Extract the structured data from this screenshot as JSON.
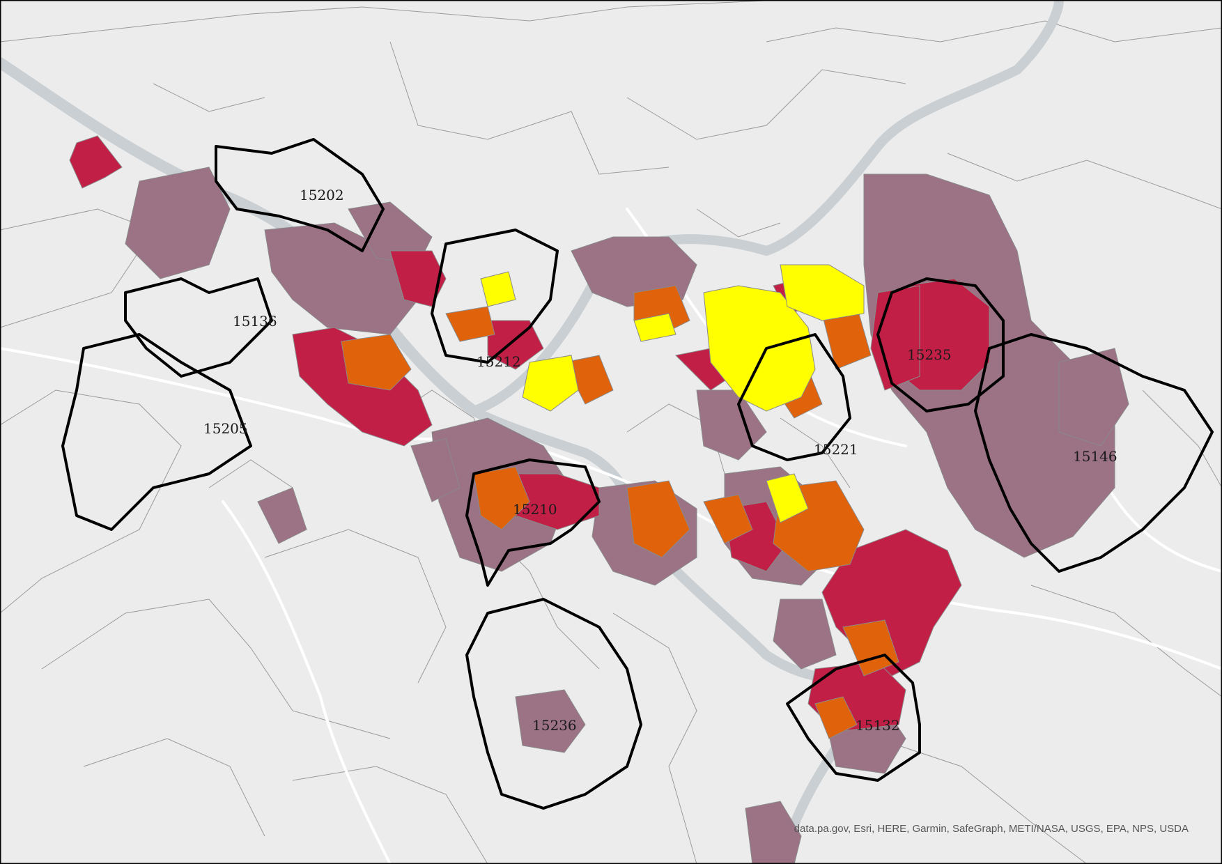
{
  "map": {
    "zip_labels": [
      "15202",
      "15136",
      "15212",
      "15205",
      "15210",
      "15235",
      "15221",
      "15146",
      "15236",
      "15132"
    ],
    "attribution": "data.pa.gov, Esri, HERE, Garmin, SafeGraph, METI/NASA, USGS, EPA, NPS, USDA"
  },
  "colors": {
    "background": "#ececec",
    "river": "#c9cfd2",
    "road": "#ffffff",
    "tract_border": "#8a8a8a",
    "zip_boundary": "#000000",
    "class_1": "#ffff00",
    "class_2": "#e0620b",
    "class_3": "#c21f47",
    "class_4": "#9c7285"
  }
}
